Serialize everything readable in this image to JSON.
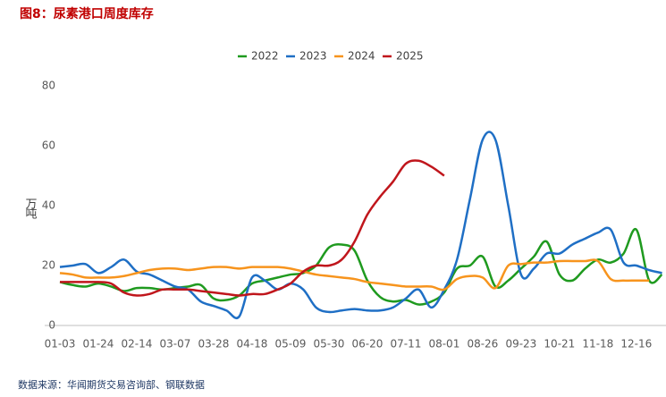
{
  "chart_data": {
    "type": "line",
    "title": "图8：尿素港口周度库存",
    "y_label": "万吨",
    "source": "数据来源：华闻期货交易咨询部、钢联数据",
    "categories": [
      "01-03",
      null,
      null,
      "01-24",
      null,
      null,
      "02-14",
      null,
      null,
      "03-07",
      null,
      null,
      "03-28",
      null,
      null,
      "04-18",
      null,
      null,
      "05-09",
      null,
      null,
      "05-30",
      null,
      null,
      "06-20",
      null,
      null,
      "07-11",
      null,
      null,
      "08-01",
      null,
      null,
      "08-26",
      null,
      null,
      "09-23",
      null,
      null,
      "10-21",
      null,
      null,
      "11-18",
      null,
      null,
      "12-16",
      null,
      null
    ],
    "ylim": [
      0,
      80
    ],
    "yticks": [
      0,
      20,
      40,
      60,
      80
    ],
    "series": [
      {
        "name": "2022",
        "color": "#1f9a1f",
        "values": [
          14.5,
          13.5,
          13,
          14,
          13,
          11.5,
          12.5,
          12.5,
          12,
          12.5,
          13,
          13.5,
          9,
          8.5,
          10,
          14,
          15,
          16,
          17,
          17.5,
          20,
          26,
          27,
          25,
          15,
          9.5,
          8,
          8.5,
          7,
          8,
          11,
          19,
          20,
          23,
          13,
          15,
          19,
          23,
          28,
          17,
          15,
          19,
          22,
          21,
          24,
          32,
          15,
          17
        ]
      },
      {
        "name": "2023",
        "color": "#1f6fc5",
        "values": [
          19.5,
          20,
          20.5,
          17.5,
          19.5,
          22,
          18,
          17,
          15,
          13,
          12,
          8,
          6.5,
          5,
          3,
          16,
          15,
          12,
          14,
          12,
          6,
          4.5,
          5,
          5.5,
          5,
          5,
          6,
          9,
          12,
          6,
          12,
          22,
          42,
          62,
          62,
          40,
          17,
          19,
          24,
          24,
          27,
          29,
          31,
          32,
          21,
          20,
          18.5,
          17.5
        ]
      },
      {
        "name": "2024",
        "color": "#f7941d",
        "values": [
          17.5,
          17,
          16,
          16,
          16,
          16.5,
          17.5,
          18.5,
          19,
          19,
          18.5,
          19,
          19.5,
          19.5,
          19,
          19.5,
          19.5,
          19.5,
          19,
          18,
          17,
          16.5,
          16,
          15.5,
          14.5,
          14,
          13.5,
          13,
          13,
          13,
          12,
          15.5,
          16.5,
          16,
          12.5,
          20,
          20.5,
          21,
          21,
          21.5,
          21.5,
          21.5,
          21.5,
          15.5,
          15,
          15,
          15,
          null
        ]
      },
      {
        "name": "2025",
        "color": "#c0161c",
        "values": [
          14.5,
          14.5,
          14.5,
          14.5,
          14,
          11,
          10,
          10.5,
          12,
          12,
          12,
          11.5,
          11,
          10.5,
          10,
          10.5,
          10.5,
          12,
          14,
          18,
          20,
          20,
          22,
          28,
          37,
          43,
          48,
          54,
          55,
          53,
          50,
          null,
          null,
          null,
          null,
          null,
          null,
          null,
          null,
          null,
          null,
          null,
          null,
          null,
          null,
          null,
          null,
          null
        ]
      }
    ]
  }
}
